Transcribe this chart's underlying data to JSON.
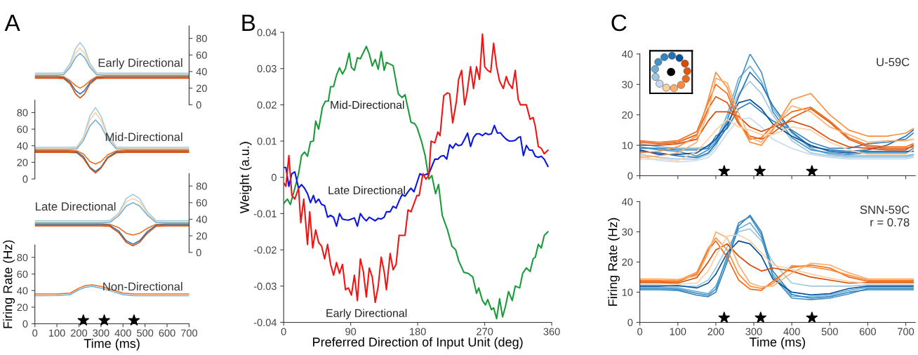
{
  "chart_data": [
    {
      "type": "line",
      "title": "A",
      "subtitle": "Early Directional",
      "xlim": [
        0,
        700
      ],
      "ylim": [
        0,
        95
      ],
      "yticks": [
        0,
        20,
        40,
        60,
        80
      ],
      "tick_labels": "y",
      "x": [
        0,
        50,
        100,
        130,
        160,
        185,
        205,
        225,
        250,
        280,
        320,
        400,
        500,
        600,
        700
      ],
      "series": [
        {
          "color": "#9ecae1",
          "values": [
            38,
            38,
            38,
            38.5,
            50,
            68,
            75,
            68,
            50,
            38.5,
            38,
            38,
            38,
            38,
            38
          ]
        },
        {
          "color": "#fdd0a2",
          "values": [
            36.8,
            36.8,
            36.8,
            37.3,
            47,
            62,
            68,
            62,
            47,
            37.3,
            36.8,
            36.8,
            36.8,
            36.8,
            36.8
          ]
        },
        {
          "color": "#6baed6",
          "values": [
            35.6,
            35.6,
            35.6,
            36.1,
            45,
            57,
            62,
            57,
            45,
            36.1,
            35.6,
            35.6,
            35.6,
            35.6,
            35.6
          ]
        },
        {
          "color": "#f16913",
          "values": [
            34.4,
            34.4,
            34.4,
            33.9,
            29,
            23,
            20,
            23,
            29,
            33.9,
            34.4,
            34.4,
            34.4,
            34.4,
            34.4
          ]
        },
        {
          "color": "#2171b5",
          "values": [
            33.2,
            33.2,
            33.2,
            32.7,
            27,
            17,
            13,
            17,
            27,
            32.7,
            33.2,
            33.2,
            33.2,
            33.2,
            33.2
          ]
        },
        {
          "color": "#d94801",
          "values": [
            32,
            32,
            32,
            31.5,
            25,
            13,
            8,
            13,
            25,
            31.5,
            32,
            32,
            32,
            32,
            32
          ]
        }
      ]
    },
    {
      "type": "line",
      "subtitle": "Mid-Directional",
      "xlim": [
        0,
        700
      ],
      "ylim": [
        0,
        95
      ],
      "yticks": [
        0,
        20,
        40,
        60,
        80
      ],
      "tick_labels": "y",
      "x": [
        0,
        50,
        100,
        150,
        190,
        220,
        250,
        275,
        300,
        330,
        370,
        420,
        500,
        600,
        700
      ],
      "series": [
        {
          "color": "#9ecae1",
          "values": [
            38,
            38,
            38,
            38,
            38.5,
            50,
            76,
            86,
            76,
            53,
            38.5,
            38,
            38,
            38,
            38
          ]
        },
        {
          "color": "#fdd0a2",
          "values": [
            36.8,
            36.8,
            36.8,
            36.8,
            37.3,
            49,
            71,
            80,
            71,
            51,
            37.3,
            36.8,
            36.8,
            36.8,
            36.8
          ]
        },
        {
          "color": "#6baed6",
          "values": [
            35.6,
            35.6,
            35.6,
            35.6,
            36.1,
            46,
            64,
            71,
            64,
            48,
            36.1,
            35.6,
            35.6,
            35.6,
            35.6
          ]
        },
        {
          "color": "#f16913",
          "values": [
            34.4,
            34.4,
            34.4,
            34.4,
            33.9,
            30,
            21,
            18,
            21,
            29,
            33.9,
            34.4,
            34.4,
            34.4,
            34.4
          ]
        },
        {
          "color": "#2171b5",
          "values": [
            33.2,
            33.2,
            33.2,
            33.2,
            32.7,
            27,
            14,
            9,
            14,
            26,
            32.7,
            33.2,
            33.2,
            33.2,
            33.2
          ]
        },
        {
          "color": "#d94801",
          "values": [
            32,
            32,
            32,
            32,
            31.5,
            25,
            13,
            7,
            13,
            25,
            31.5,
            32,
            32,
            32,
            32
          ]
        }
      ]
    },
    {
      "type": "line",
      "subtitle": "Late Directional",
      "xlim": [
        0,
        700
      ],
      "ylim": [
        0,
        95
      ],
      "yticks": [
        0,
        20,
        40,
        60,
        80
      ],
      "tick_labels": "y",
      "x": [
        0,
        50,
        100,
        150,
        200,
        250,
        300,
        340,
        380,
        415,
        445,
        475,
        510,
        550,
        600,
        650,
        700
      ],
      "series": [
        {
          "color": "#9ecae1",
          "values": [
            38,
            38,
            38,
            38,
            38,
            38,
            38,
            38.5,
            47,
            65,
            70,
            65,
            49,
            38.5,
            38,
            38,
            38
          ]
        },
        {
          "color": "#fdd0a2",
          "values": [
            36.8,
            36.8,
            36.8,
            36.8,
            36.8,
            36.8,
            36.8,
            37.3,
            46,
            61,
            65,
            61,
            47,
            37.3,
            36.8,
            36.8,
            36.8
          ]
        },
        {
          "color": "#6baed6",
          "values": [
            35.6,
            35.6,
            35.6,
            35.6,
            35.6,
            35.6,
            35.6,
            36.1,
            44,
            56,
            60,
            56,
            45,
            36.1,
            35.6,
            35.6,
            35.6
          ]
        },
        {
          "color": "#f16913",
          "values": [
            34.4,
            34.4,
            34.4,
            34.4,
            34.4,
            34.4,
            34.4,
            33.9,
            30,
            23,
            21,
            23,
            29,
            33.9,
            34.4,
            34.4,
            34.4
          ]
        },
        {
          "color": "#2171b5",
          "values": [
            33.2,
            33.2,
            33.2,
            33.2,
            33.2,
            33.2,
            33.2,
            32.7,
            26,
            14,
            10,
            14,
            25,
            32.7,
            33.2,
            33.2,
            33.2
          ]
        },
        {
          "color": "#d94801",
          "values": [
            32,
            32,
            32,
            32,
            32,
            32,
            32,
            31.5,
            24,
            12,
            8,
            12,
            23,
            31.5,
            32,
            32,
            32
          ]
        }
      ]
    },
    {
      "type": "line",
      "subtitle": "Non-Directional",
      "xlabel": "Time (ms)",
      "ylabel": "Firing Rate (Hz)",
      "xlim": [
        0,
        700
      ],
      "ylim": [
        0,
        95
      ],
      "xticks": [
        0,
        100,
        200,
        300,
        400,
        500,
        600,
        700
      ],
      "yticks": [
        0,
        20,
        40,
        60,
        80
      ],
      "x": [
        0,
        100,
        160,
        200,
        230,
        260,
        300,
        350,
        400,
        450,
        500,
        600,
        700
      ],
      "series": [
        {
          "color": "#6baed6",
          "values": [
            33.8,
            34,
            35,
            41,
            44,
            45,
            43,
            39,
            35,
            33.8,
            33.8,
            33.8,
            33.8
          ]
        },
        {
          "color": "#f16913",
          "values": [
            36,
            36,
            37,
            43,
            46,
            47,
            45,
            41,
            37,
            36,
            36,
            36,
            36
          ]
        },
        {
          "type": "scatter",
          "marker": "star",
          "color": "#000000",
          "x": [
            220,
            315,
            450
          ],
          "values": [
            4,
            4,
            4
          ]
        }
      ]
    },
    {
      "type": "line",
      "title": "B",
      "xlabel": "Preferred Direction of Input Unit (deg)",
      "ylabel": "Weight (a.u.)",
      "xlim": [
        0,
        360
      ],
      "ylim": [
        -0.04,
        0.04
      ],
      "xticks": [
        0,
        90,
        180,
        270,
        360
      ],
      "yticks": [
        -0.04,
        -0.03,
        -0.02,
        -0.01,
        0,
        0.01,
        0.02,
        0.03,
        0.04
      ],
      "series": [
        {
          "name": "Mid-Directional",
          "color": "#1a9a3a",
          "x": [
            0,
            5,
            9,
            15,
            20,
            24,
            28,
            32,
            36,
            40,
            43,
            47,
            52,
            56,
            60,
            63,
            67,
            71,
            75,
            79,
            83,
            88,
            91,
            95,
            99,
            103,
            111,
            115,
            119,
            123,
            127,
            131,
            135,
            138,
            147,
            154,
            159,
            163,
            171,
            176,
            179,
            185,
            190,
            195,
            199,
            204,
            208,
            213,
            220,
            226,
            231,
            235,
            242,
            248,
            254,
            259,
            262,
            267,
            271,
            274,
            279,
            282,
            286,
            290,
            294,
            298,
            302,
            307,
            311,
            317,
            321,
            326,
            331,
            335,
            338,
            342,
            346,
            350,
            355
          ],
          "values": [
            -0.0072,
            -0.006,
            -0.0075,
            -0.003,
            0.001,
            0.006,
            0.007,
            0.0058,
            0.0098,
            0.01,
            0.0155,
            0.0133,
            0.0193,
            0.021,
            0.021,
            0.025,
            0.025,
            0.0282,
            0.0302,
            0.0285,
            0.03,
            0.0343,
            0.0303,
            0.0295,
            0.033,
            0.0327,
            0.0361,
            0.034,
            0.0307,
            0.0325,
            0.0298,
            0.0347,
            0.0295,
            0.0317,
            0.0308,
            0.023,
            0.022,
            0.0228,
            0.0152,
            0.0148,
            0.0138,
            0.01,
            0.006,
            -0.0005,
            0.0005,
            -0.0045,
            -0.002,
            -0.0105,
            -0.0145,
            -0.019,
            -0.02,
            -0.023,
            -0.0262,
            -0.0265,
            -0.0275,
            -0.032,
            -0.0305,
            -0.034,
            -0.0352,
            -0.0337,
            -0.0365,
            -0.036,
            -0.039,
            -0.0335,
            -0.0385,
            -0.0355,
            -0.0315,
            -0.034,
            -0.03,
            -0.0305,
            -0.0265,
            -0.025,
            -0.026,
            -0.0225,
            -0.022,
            -0.0185,
            -0.0195,
            -0.016,
            -0.015
          ]
        },
        {
          "name": "Late Directional",
          "color": "#0a14e6",
          "x": [
            0,
            3,
            7,
            11,
            15,
            20,
            24,
            28,
            32,
            36,
            40,
            43,
            47,
            51,
            55,
            59,
            63,
            67,
            71,
            75,
            79,
            83,
            87,
            91,
            95,
            99,
            103,
            107,
            111,
            115,
            119,
            123,
            127,
            131,
            135,
            138,
            143,
            147,
            151,
            155,
            159,
            163,
            167,
            171,
            175,
            179,
            183,
            187,
            191,
            195,
            199,
            203,
            207,
            211,
            215,
            219,
            223,
            227,
            231,
            235,
            239,
            243,
            247,
            251,
            255,
            259,
            263,
            267,
            271,
            275,
            279,
            283,
            287,
            291,
            295,
            299,
            303,
            307,
            311,
            315,
            318,
            322,
            326,
            330,
            334,
            338,
            342,
            346,
            350,
            355
          ],
          "values": [
            0.0027,
            0.0027,
            -0.0025,
            0.001,
            0.0015,
            -0.003,
            -0.002,
            -0.003,
            -0.0045,
            -0.007,
            -0.005,
            -0.007,
            -0.006,
            -0.0075,
            -0.0078,
            -0.011,
            -0.0105,
            -0.011,
            -0.0135,
            -0.01,
            -0.0115,
            -0.0117,
            -0.0118,
            -0.0115,
            -0.0112,
            -0.0135,
            -0.01,
            -0.0112,
            -0.012,
            -0.011,
            -0.0115,
            -0.012,
            -0.0113,
            -0.0115,
            -0.011,
            -0.0095,
            -0.0095,
            -0.008,
            -0.0085,
            -0.0065,
            -0.0048,
            -0.0052,
            -0.004,
            -0.003,
            -0.004,
            -0.0015,
            0.001,
            0.0005,
            0.0008,
            0.001,
            0.003,
            0.005,
            0.005,
            0.0058,
            0.006,
            0.005,
            0.009,
            0.008,
            0.0093,
            0.0087,
            0.009,
            0.0105,
            0.0122,
            0.0085,
            0.011,
            0.012,
            0.012,
            0.0115,
            0.0122,
            0.0118,
            0.012,
            0.0143,
            0.0122,
            0.0123,
            0.0113,
            0.0105,
            0.01,
            0.01,
            0.0102,
            0.011,
            0.0112,
            0.006,
            0.0088,
            0.0075,
            0.0075,
            0.0058,
            0.0055,
            0.0058,
            0.005,
            0.003
          ]
        },
        {
          "name": "Early Directional",
          "color": "#f01414",
          "x": [
            0,
            3,
            7,
            11,
            15,
            20,
            23,
            27,
            32,
            35,
            39,
            43,
            47,
            51,
            55,
            59,
            63,
            67,
            71,
            75,
            79,
            83,
            87,
            91,
            95,
            99,
            103,
            107,
            111,
            115,
            119,
            123,
            127,
            131,
            135,
            138,
            143,
            147,
            151,
            155,
            159,
            163,
            167,
            171,
            179,
            182,
            187,
            191,
            195,
            198,
            203,
            207,
            210,
            215,
            220,
            223,
            227,
            232,
            235,
            239,
            243,
            246,
            251,
            255,
            259,
            263,
            267,
            270,
            274,
            278,
            282,
            286,
            290,
            295,
            299,
            302,
            307,
            311,
            315,
            318,
            326,
            331,
            335,
            338,
            342,
            346,
            350,
            355
          ],
          "values": [
            -0.0015,
            -0.0025,
            0.006,
            -0.005,
            -0.006,
            -0.003,
            -0.0125,
            -0.006,
            -0.0185,
            -0.0095,
            -0.0195,
            -0.0145,
            -0.018,
            -0.019,
            -0.0225,
            -0.0185,
            -0.024,
            -0.027,
            -0.0235,
            -0.0265,
            -0.024,
            -0.031,
            -0.0305,
            -0.0325,
            -0.027,
            -0.034,
            -0.0225,
            -0.026,
            -0.033,
            -0.025,
            -0.0275,
            -0.0345,
            -0.03,
            -0.022,
            -0.026,
            -0.031,
            -0.021,
            -0.0255,
            -0.024,
            -0.016,
            -0.016,
            -0.016,
            -0.009,
            -0.0095,
            -0.005,
            -0.005,
            0.001,
            -0.0005,
            0.0005,
            0.01,
            0.0095,
            0.0125,
            0.0115,
            0.0225,
            0.0233,
            0.023,
            0.015,
            0.021,
            0.027,
            0.0295,
            0.02,
            0.023,
            0.0305,
            0.0245,
            0.0305,
            0.027,
            0.0395,
            0.0305,
            0.0295,
            0.029,
            0.037,
            0.0305,
            0.0265,
            0.0245,
            0.0278,
            0.026,
            0.0245,
            0.0295,
            0.0215,
            0.02,
            0.02,
            0.016,
            0.0165,
            0.014,
            0.0085,
            0.008,
            0.0065,
            0.0075
          ]
        }
      ]
    },
    {
      "type": "line",
      "title": "C",
      "subtitle": "U-59C",
      "xlim": [
        0,
        725
      ],
      "ylim": [
        0,
        40
      ],
      "xticks": [
        {
          "value": 0,
          "label": null
        },
        {
          "value": 100,
          "label": null
        },
        {
          "value": 200,
          "label": null
        },
        {
          "value": 300,
          "label": null
        },
        {
          "value": 400,
          "label": null
        },
        {
          "value": 500,
          "label": null
        },
        {
          "value": 600,
          "label": null
        },
        {
          "value": 700,
          "label": null
        }
      ],
      "yticks": [
        0,
        10,
        20,
        30,
        40
      ],
      "tick_labels": "y",
      "x": [
        0,
        50,
        100,
        150,
        180,
        200,
        230,
        260,
        290,
        320,
        350,
        400,
        450,
        500,
        550,
        600,
        650,
        700,
        720
      ],
      "series": [
        {
          "color": "#c6dbef",
          "values": [
            6.5,
            5,
            4.5,
            5,
            6,
            8.5,
            14,
            18.5,
            19,
            16,
            12,
            9,
            7,
            6,
            5.5,
            5.5,
            5.5,
            5.5,
            6
          ]
        },
        {
          "color": "#9ecae1",
          "values": [
            7,
            6,
            5.5,
            5.5,
            7,
            9.5,
            19,
            27,
            31,
            27,
            20,
            11.5,
            7.5,
            6.5,
            6,
            6,
            6,
            6,
            6.5
          ]
        },
        {
          "color": "#6baed6",
          "values": [
            10.5,
            9.5,
            9,
            9,
            9.5,
            11.5,
            20,
            32,
            36,
            31,
            22,
            14,
            9,
            7,
            6.5,
            6.5,
            6.5,
            6.5,
            7
          ]
        },
        {
          "color": "#4292c6",
          "values": [
            9.5,
            8.5,
            8,
            6.5,
            8.5,
            11,
            18,
            30,
            40,
            34,
            21,
            12.5,
            8.5,
            7.5,
            7,
            7.5,
            7.5,
            7.5,
            9
          ]
        },
        {
          "color": "#3182bd",
          "values": [
            9,
            9,
            8.5,
            8.5,
            9,
            13,
            15.5,
            22,
            24,
            21,
            18,
            15,
            11,
            9,
            9,
            10.5,
            11,
            12,
            14
          ]
        },
        {
          "color": "#2171b5",
          "values": [
            8,
            7.5,
            6.5,
            6,
            7.5,
            10.5,
            16,
            26,
            34,
            30,
            23,
            14.5,
            9.5,
            8.5,
            8,
            8.5,
            10,
            13,
            15
          ]
        },
        {
          "color": "#08519c",
          "values": [
            8.5,
            7,
            7,
            7.5,
            10,
            12,
            17,
            24,
            25,
            22,
            17,
            13,
            10,
            8,
            7.5,
            8,
            8,
            8,
            8
          ]
        },
        {
          "color": "#d94801",
          "values": [
            10,
            10,
            10.5,
            12,
            18,
            21,
            21,
            19.5,
            16,
            14.5,
            16,
            18,
            16,
            12,
            9.5,
            9,
            8.5,
            8.5,
            10
          ]
        },
        {
          "color": "#e6550d",
          "values": [
            11,
            10.5,
            11,
            13.5,
            22,
            26,
            24,
            17,
            13,
            12,
            14,
            19,
            22,
            17.5,
            12,
            9.5,
            9,
            9,
            9.5
          ]
        },
        {
          "color": "#f16913",
          "values": [
            11.5,
            11,
            11.5,
            14.5,
            24,
            30,
            27,
            17.5,
            12,
            12.5,
            16.5,
            21,
            22.5,
            18,
            12.5,
            10,
            9.5,
            9.5,
            10.5
          ]
        },
        {
          "color": "#fd8d3c",
          "values": [
            7.5,
            8,
            9.5,
            13,
            25,
            34,
            29,
            18,
            11,
            10,
            15,
            25,
            27,
            20,
            15,
            13,
            13,
            14,
            15.5
          ]
        },
        {
          "color": "#fdae6b",
          "values": [
            6,
            6.5,
            7.5,
            11,
            21,
            32,
            30.5,
            20.5,
            12.5,
            11,
            15.5,
            23,
            21,
            16,
            13.5,
            11,
            11.5,
            11.5,
            12
          ]
        },
        {
          "color": "#fdd0a2",
          "values": [
            5.5,
            5.5,
            5,
            8,
            12,
            15,
            18.5,
            16,
            15,
            13.5,
            13.5,
            16,
            15,
            11,
            8.5,
            7,
            7,
            7,
            8.5
          ]
        },
        {
          "type": "scatter",
          "marker": "star",
          "color": "#000000",
          "x": [
            222,
            316,
            453
          ],
          "values": [
            1.5,
            1.5,
            1.5
          ]
        }
      ]
    },
    {
      "type": "line",
      "subtitle": "SNN-59C\nr = 0.78",
      "xlabel": "Time (ms)",
      "ylabel": "Firing Rate (Hz)",
      "xlim": [
        0,
        725
      ],
      "ylim": [
        0,
        40
      ],
      "xticks": [
        0,
        100,
        200,
        300,
        400,
        500,
        600,
        700
      ],
      "yticks": [
        0,
        10,
        20,
        30,
        40
      ],
      "x": [
        0,
        50,
        100,
        150,
        180,
        200,
        230,
        260,
        290,
        320,
        350,
        400,
        450,
        500,
        550,
        600,
        650,
        700,
        720
      ],
      "series": [
        {
          "color": "#9ecae1",
          "values": [
            12.4,
            12.4,
            11.8,
            12,
            14,
            18,
            25,
            30,
            31,
            27,
            20,
            13,
            12,
            12,
            12,
            12.4,
            12.4,
            12.4,
            12.4
          ]
        },
        {
          "color": "#6baed6",
          "values": [
            11.6,
            11.6,
            11.4,
            10.2,
            9.5,
            12,
            21,
            31,
            33,
            28,
            16,
            8.6,
            8.5,
            9,
            10.6,
            11.6,
            11.6,
            11.6,
            11.6
          ]
        },
        {
          "color": "#4292c6",
          "values": [
            11.2,
            11.2,
            11,
            9.6,
            9,
            11,
            22,
            33,
            35,
            29,
            15.2,
            8,
            7.5,
            8,
            9.4,
            11.2,
            11.2,
            11.2,
            11.2
          ]
        },
        {
          "color": "#3182bd",
          "values": [
            10.8,
            10.8,
            10.6,
            9,
            8.5,
            10,
            20,
            32,
            35.5,
            30,
            17,
            9.2,
            8,
            8.5,
            10,
            10.8,
            10.8,
            10.8,
            10.8
          ]
        },
        {
          "color": "#08519c",
          "values": [
            12,
            12,
            12.2,
            11.4,
            13,
            16,
            23,
            27,
            26,
            22,
            14.4,
            10,
            9.1,
            9.5,
            11.2,
            12,
            12,
            12,
            12
          ]
        },
        {
          "color": "#d94801",
          "values": [
            13.2,
            13.2,
            13,
            14.8,
            20,
            24,
            26,
            22,
            19,
            17,
            18,
            17,
            15,
            14,
            13,
            13.2,
            13.2,
            13.2,
            13.2
          ]
        },
        {
          "color": "#f16913",
          "values": [
            13.6,
            13.6,
            13.4,
            16,
            24,
            27,
            21.5,
            14,
            11,
            10.6,
            13.6,
            18.2,
            19,
            18,
            15,
            13.6,
            13.6,
            13.6,
            13.6
          ]
        },
        {
          "color": "#fd8d3c",
          "values": [
            14,
            14,
            13.8,
            16.6,
            24.6,
            28,
            24,
            16,
            12,
            11.2,
            12.8,
            18.8,
            18.4,
            17.4,
            15.6,
            14,
            14,
            14,
            14
          ]
        },
        {
          "color": "#fdae6b",
          "values": [
            14.4,
            14.4,
            14.2,
            15.4,
            23,
            30,
            28,
            19,
            13,
            11.8,
            12,
            16.4,
            19.6,
            19,
            16.4,
            14.4,
            14.4,
            14.4,
            14.4
          ]
        },
        {
          "color": "#fdd0a2",
          "values": [
            12.8,
            12.8,
            12.6,
            13,
            17,
            22,
            28.6,
            29,
            27,
            23,
            19,
            17.6,
            16,
            14.6,
            13.6,
            12.8,
            12.8,
            12.8,
            12.8
          ]
        },
        {
          "type": "scatter",
          "marker": "star",
          "color": "#000000",
          "x": [
            222,
            318,
            453
          ],
          "values": [
            1.5,
            1.5,
            1.5
          ]
        }
      ]
    }
  ]
}
